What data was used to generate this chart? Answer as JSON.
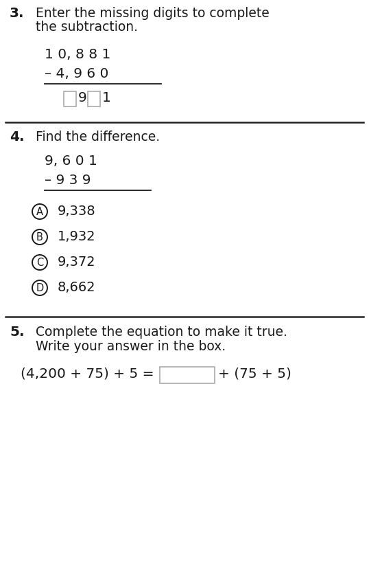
{
  "bg_color": "#ffffff",
  "text_color": "#1a1a1a",
  "q3_number": "3.",
  "q3_instruction_line1": "Enter the missing digits to complete",
  "q3_instruction_line2": "the subtraction.",
  "q3_num1": "1 0, 8 8 1",
  "q3_num2": "– 4, 9 6 0",
  "q4_number": "4.",
  "q4_instruction": "Find the difference.",
  "q4_num1": "9, 6 0 1",
  "q4_num2": "– 9 3 9",
  "q4_choices": [
    {
      "letter": "A",
      "value": "9,338"
    },
    {
      "letter": "B",
      "value": "1,932"
    },
    {
      "letter": "C",
      "value": "9,372"
    },
    {
      "letter": "D",
      "value": "8,662"
    }
  ],
  "q5_number": "5.",
  "q5_instruction_line1": "Complete the equation to make it true.",
  "q5_instruction_line2": "Write your answer in the box.",
  "q5_equation_left": "(4,200 + 75) + 5 =",
  "q5_equation_right": "+ (75 + 5)",
  "divider_color": "#333333",
  "box_color": "#aaaaaa",
  "font_size_body": 13.5,
  "font_size_bold": 14.5,
  "font_size_math": 14.5,
  "font_size_choice": 14.0
}
